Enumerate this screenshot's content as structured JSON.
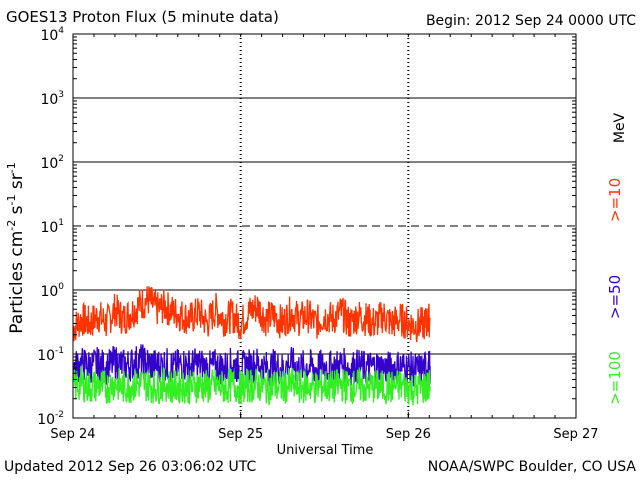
{
  "header": {
    "title": "GOES13 Proton Flux (5 minute data)",
    "begin": "Begin: 2012 Sep 24 0000 UTC"
  },
  "footer": {
    "updated": "Updated 2012 Sep 26 03:06:02 UTC",
    "credit": "NOAA/SWPC Boulder, CO USA"
  },
  "chart_data": {
    "type": "line",
    "title": "GOES13 Proton Flux (5 minute data)",
    "xlabel": "Universal Time",
    "ylabel": "Particles cm-2 s-1 sr-1",
    "yscale": "log",
    "ylim": [
      0.01,
      10000
    ],
    "xlim": [
      0,
      3
    ],
    "x_unit": "days since 2012 Sep 24 0000 UTC",
    "x_ticks": [
      {
        "value": 0,
        "label": "Sep 24"
      },
      {
        "value": 1,
        "label": "Sep 25"
      },
      {
        "value": 2,
        "label": "Sep 26"
      },
      {
        "value": 3,
        "label": "Sep 27"
      }
    ],
    "y_ticks": [
      {
        "value": 0.01,
        "base": "10",
        "exp": "-2"
      },
      {
        "value": 0.1,
        "base": "10",
        "exp": "-1"
      },
      {
        "value": 1,
        "base": "10",
        "exp": "0"
      },
      {
        "value": 10,
        "base": "10",
        "exp": "1"
      },
      {
        "value": 100,
        "base": "10",
        "exp": "2"
      },
      {
        "value": 1000,
        "base": "10",
        "exp": "3"
      },
      {
        "value": 10000,
        "base": "10",
        "exp": "4"
      }
    ],
    "threshold_lines": [
      1,
      10
    ],
    "unit_label": "MeV",
    "series": [
      {
        "name": ">=10",
        "color": "#ff3300",
        "x": [
          0,
          0.05,
          0.1,
          0.15,
          0.2,
          0.25,
          0.3,
          0.35,
          0.4,
          0.45,
          0.5,
          0.55,
          0.6,
          0.65,
          0.7,
          0.75,
          0.8,
          0.85,
          0.9,
          0.95,
          1,
          1.05,
          1.1,
          1.15,
          1.2,
          1.25,
          1.3,
          1.35,
          1.4,
          1.45,
          1.5,
          1.55,
          1.6,
          1.65,
          1.7,
          1.75,
          1.8,
          1.85,
          1.9,
          1.95,
          2,
          2.05,
          2.1,
          2.13
        ],
        "values": [
          0.25,
          0.35,
          0.3,
          0.4,
          0.3,
          0.5,
          0.35,
          0.45,
          0.6,
          0.7,
          0.5,
          0.55,
          0.45,
          0.4,
          0.35,
          0.45,
          0.3,
          0.5,
          0.35,
          0.4,
          0.3,
          0.45,
          0.55,
          0.35,
          0.4,
          0.3,
          0.45,
          0.35,
          0.4,
          0.3,
          0.4,
          0.35,
          0.45,
          0.3,
          0.4,
          0.35,
          0.3,
          0.4,
          0.3,
          0.35,
          0.3,
          0.28,
          0.3,
          0.35
        ]
      },
      {
        "name": ">=50",
        "color": "#3300cc",
        "x": [
          0,
          0.05,
          0.1,
          0.15,
          0.2,
          0.25,
          0.3,
          0.35,
          0.4,
          0.45,
          0.5,
          0.55,
          0.6,
          0.65,
          0.7,
          0.75,
          0.8,
          0.85,
          0.9,
          0.95,
          1,
          1.05,
          1.1,
          1.15,
          1.2,
          1.25,
          1.3,
          1.35,
          1.4,
          1.45,
          1.5,
          1.55,
          1.6,
          1.65,
          1.7,
          1.75,
          1.8,
          1.85,
          1.9,
          1.95,
          2,
          2.05,
          2.1,
          2.13
        ],
        "values": [
          0.06,
          0.07,
          0.065,
          0.07,
          0.06,
          0.075,
          0.065,
          0.07,
          0.08,
          0.07,
          0.065,
          0.07,
          0.06,
          0.07,
          0.065,
          0.07,
          0.06,
          0.065,
          0.06,
          0.07,
          0.06,
          0.065,
          0.07,
          0.06,
          0.065,
          0.06,
          0.07,
          0.06,
          0.065,
          0.06,
          0.065,
          0.06,
          0.07,
          0.06,
          0.065,
          0.06,
          0.065,
          0.06,
          0.06,
          0.065,
          0.06,
          0.055,
          0.06,
          0.065
        ]
      },
      {
        "name": ">=100",
        "color": "#33ee22",
        "x": [
          0,
          0.05,
          0.1,
          0.15,
          0.2,
          0.25,
          0.3,
          0.35,
          0.4,
          0.45,
          0.5,
          0.55,
          0.6,
          0.65,
          0.7,
          0.75,
          0.8,
          0.85,
          0.9,
          0.95,
          1,
          1.05,
          1.1,
          1.15,
          1.2,
          1.25,
          1.3,
          1.35,
          1.4,
          1.45,
          1.5,
          1.55,
          1.6,
          1.65,
          1.7,
          1.75,
          1.8,
          1.85,
          1.9,
          1.95,
          2,
          2.05,
          2.1,
          2.13
        ],
        "values": [
          0.03,
          0.035,
          0.03,
          0.033,
          0.03,
          0.035,
          0.03,
          0.032,
          0.035,
          0.033,
          0.03,
          0.034,
          0.03,
          0.032,
          0.03,
          0.033,
          0.03,
          0.032,
          0.03,
          0.033,
          0.03,
          0.032,
          0.033,
          0.03,
          0.032,
          0.03,
          0.033,
          0.03,
          0.032,
          0.03,
          0.032,
          0.03,
          0.033,
          0.03,
          0.032,
          0.03,
          0.031,
          0.03,
          0.03,
          0.032,
          0.03,
          0.028,
          0.03,
          0.031
        ]
      }
    ]
  }
}
